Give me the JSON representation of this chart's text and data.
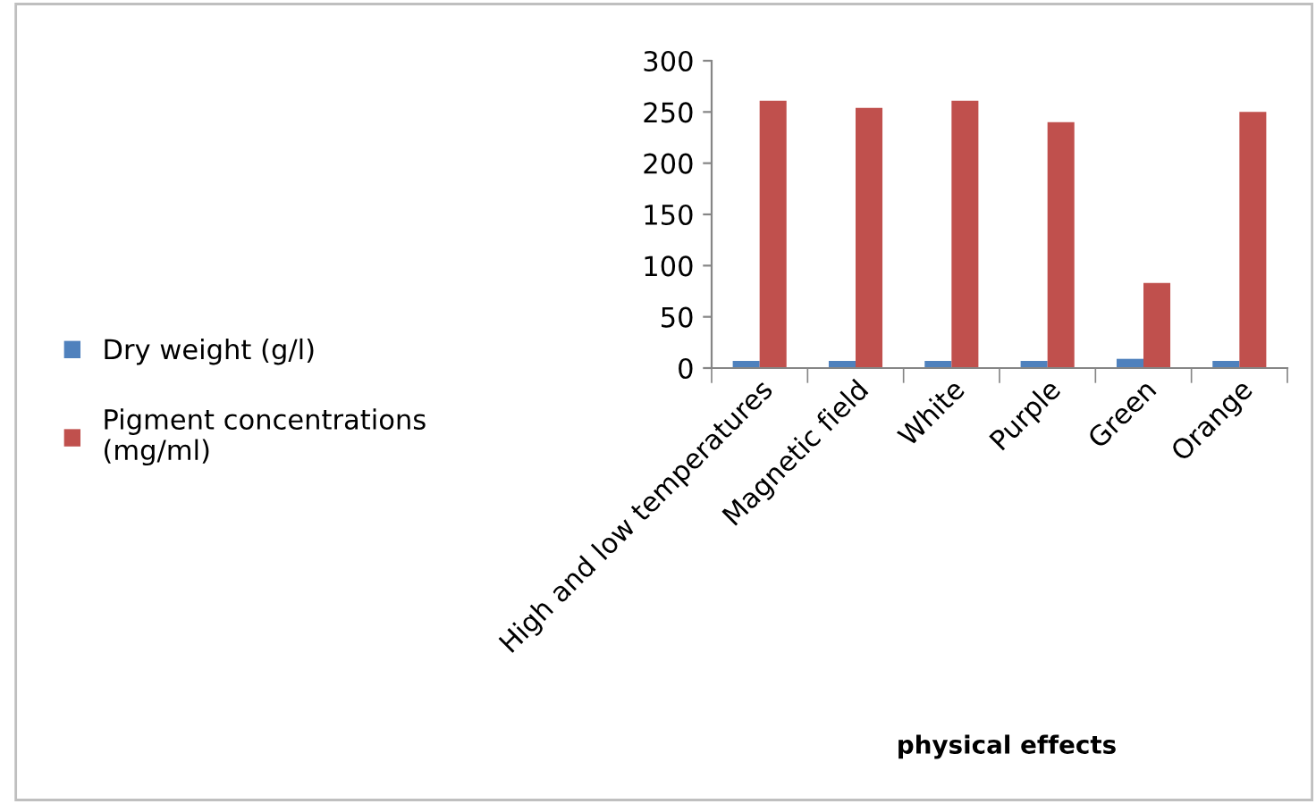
{
  "chart_data": {
    "type": "bar",
    "xlabel": "physical effects",
    "categories": [
      "High and low temperatures",
      "Magnetic field",
      "White",
      "Purple",
      "Green",
      "Orange"
    ],
    "series": [
      {
        "name": "Dry weight (g/l)",
        "color": "#4f81bd",
        "values": [
          7,
          7,
          7,
          7,
          9,
          7
        ]
      },
      {
        "name": "Pigment concentrations\n(mg/ml)",
        "color": "#c0504d",
        "values": [
          261,
          254,
          261,
          240,
          83,
          250
        ]
      }
    ],
    "ylim": [
      0,
      300
    ],
    "yticks": [
      0,
      50,
      100,
      150,
      200,
      250,
      300
    ],
    "grid": false,
    "legend": "left"
  }
}
